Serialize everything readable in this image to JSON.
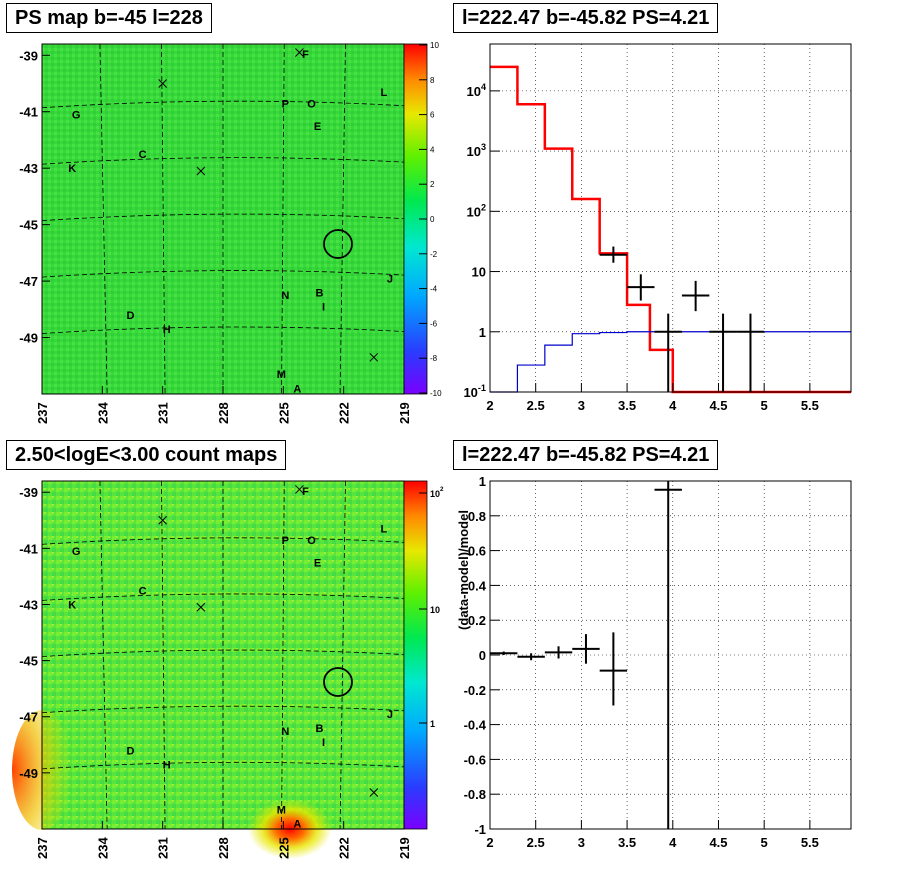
{
  "panels": {
    "map_title": "PS map b=-45 l=228",
    "spectrum_title": "l=222.47 b=-45.82 PS=4.21",
    "count_title": "2.50<logE<3.00 count maps",
    "residual_title": "l=222.47 b=-45.82 PS=4.21"
  },
  "chart_data": [
    {
      "type": "heatmap",
      "title": "PS map b=-45 l=228",
      "x_ticks": [
        "237",
        "234",
        "231",
        "228",
        "225",
        "222",
        "219"
      ],
      "y_ticks": [
        "-39",
        "-41",
        "-43",
        "-45",
        "-47",
        "-49"
      ],
      "colorbar": {
        "min": -10,
        "max": 10,
        "ticks": [
          "10",
          "8",
          "6",
          "4",
          "2",
          "0",
          "-2",
          "-4",
          "-6",
          "-8",
          "-10"
        ]
      },
      "labels": [
        {
          "t": "F",
          "l": 223.9,
          "b": -38.95
        },
        {
          "t": "L",
          "l": 220.0,
          "b": -40.3
        },
        {
          "t": "P",
          "l": 224.9,
          "b": -40.7
        },
        {
          "t": "O",
          "l": 223.6,
          "b": -40.7
        },
        {
          "t": "G",
          "l": 235.3,
          "b": -41.1
        },
        {
          "t": "E",
          "l": 223.3,
          "b": -41.5
        },
        {
          "t": "C",
          "l": 232.0,
          "b": -42.5
        },
        {
          "t": "K",
          "l": 235.5,
          "b": -43.0
        },
        {
          "t": "J",
          "l": 219.7,
          "b": -46.9
        },
        {
          "t": "N",
          "l": 224.9,
          "b": -47.5
        },
        {
          "t": "B",
          "l": 223.2,
          "b": -47.4
        },
        {
          "t": "I",
          "l": 223.0,
          "b": -47.9
        },
        {
          "t": "D",
          "l": 232.6,
          "b": -48.2
        },
        {
          "t": "H",
          "l": 230.8,
          "b": -48.7
        },
        {
          "t": "M",
          "l": 225.1,
          "b": -50.3
        },
        {
          "t": "A",
          "l": 224.3,
          "b": -50.8
        }
      ],
      "crosses": [
        {
          "l": 224.2,
          "b": -38.9
        },
        {
          "l": 231.0,
          "b": -40.0
        },
        {
          "l": 229.1,
          "b": -43.1
        },
        {
          "l": 220.5,
          "b": -49.7
        }
      ],
      "circle": {
        "l": 222.47,
        "b": -45.82
      }
    },
    {
      "type": "histogram",
      "title": "l=222.47 b=-45.82 PS=4.21",
      "y_scale": "log",
      "xlim": [
        2,
        5.95
      ],
      "ylim": [
        0.1,
        60000
      ],
      "x_ticks": [
        "2",
        "2.5",
        "3",
        "3.5",
        "4",
        "4.5",
        "5",
        "5.5"
      ],
      "y_ticks": [
        "10^-1",
        "1",
        "10",
        "10^2",
        "10^3",
        "10^4"
      ],
      "series": [
        {
          "color": "#ff0000",
          "bins": [
            [
              2.0,
              2.3,
              25000
            ],
            [
              2.3,
              2.6,
              6000
            ],
            [
              2.6,
              2.9,
              1100
            ],
            [
              2.9,
              3.2,
              160
            ],
            [
              3.2,
              3.5,
              20
            ],
            [
              3.5,
              3.75,
              2.8
            ],
            [
              3.75,
              4.0,
              0.5
            ],
            [
              4.0,
              4.3,
              0.1
            ],
            [
              4.3,
              5.95,
              0.1
            ]
          ]
        },
        {
          "color": "#0000cc",
          "bins": [
            [
              2.0,
              2.3,
              0.1
            ],
            [
              2.3,
              2.6,
              0.28
            ],
            [
              2.6,
              2.9,
              0.6
            ],
            [
              2.9,
              3.2,
              0.93
            ],
            [
              3.2,
              3.5,
              0.97
            ],
            [
              3.5,
              3.8,
              1.0
            ],
            [
              3.8,
              4.1,
              1.0
            ],
            [
              4.1,
              4.4,
              1.0
            ],
            [
              4.4,
              5.95,
              1.0
            ]
          ]
        }
      ],
      "points": [
        {
          "x": 3.35,
          "xerr": 0.15,
          "y": 19,
          "ylo": 14,
          "yhi": 26
        },
        {
          "x": 3.65,
          "xerr": 0.15,
          "y": 5.5,
          "ylo": 3.3,
          "yhi": 9.0
        },
        {
          "x": 3.95,
          "xerr": 0.15,
          "y": 1.0,
          "ylo": 0.08,
          "yhi": 2.0
        },
        {
          "x": 4.25,
          "xerr": 0.15,
          "y": 4.0,
          "ylo": 2.2,
          "yhi": 7.0
        },
        {
          "x": 4.55,
          "xerr": 0.15,
          "y": 1.0,
          "ylo": 0.08,
          "yhi": 2.0
        },
        {
          "x": 4.85,
          "xerr": 0.15,
          "y": 1.0,
          "ylo": 0.08,
          "yhi": 2.0
        }
      ]
    },
    {
      "type": "heatmap",
      "title": "2.50<logE<3.00 count maps",
      "x_ticks": [
        "237",
        "234",
        "231",
        "228",
        "225",
        "222",
        "219"
      ],
      "y_ticks": [
        "-39",
        "-41",
        "-43",
        "-45",
        "-47",
        "-49"
      ],
      "colorbar": {
        "ticks": [
          "10^2",
          "10",
          "1"
        ]
      }
    },
    {
      "type": "scatter",
      "title": "l=222.47 b=-45.82 PS=4.21",
      "ylabel": "(data-model)/model",
      "xlim": [
        2,
        5.95
      ],
      "ylim": [
        -1,
        1
      ],
      "x_ticks": [
        "2",
        "2.5",
        "3",
        "3.5",
        "4",
        "4.5",
        "5",
        "5.5"
      ],
      "y_ticks": [
        "1",
        "0.8",
        "0.6",
        "0.4",
        "0.2",
        "0",
        "-0.2",
        "-0.4",
        "-0.6",
        "-0.8",
        "-1"
      ],
      "points": [
        {
          "x": 2.15,
          "xerr": 0.15,
          "y": 0.01,
          "ylo": 0.0,
          "yhi": 0.02
        },
        {
          "x": 2.45,
          "xerr": 0.15,
          "y": -0.01,
          "ylo": -0.03,
          "yhi": 0.01
        },
        {
          "x": 2.75,
          "xerr": 0.15,
          "y": 0.015,
          "ylo": -0.02,
          "yhi": 0.05
        },
        {
          "x": 3.05,
          "xerr": 0.15,
          "y": 0.035,
          "ylo": -0.05,
          "yhi": 0.12
        },
        {
          "x": 3.35,
          "xerr": 0.15,
          "y": -0.09,
          "ylo": -0.29,
          "yhi": 0.13
        },
        {
          "x": 3.95,
          "xerr": 0.15,
          "y": 0.95,
          "ylo": -1.0,
          "yhi": 1.0
        }
      ]
    }
  ]
}
